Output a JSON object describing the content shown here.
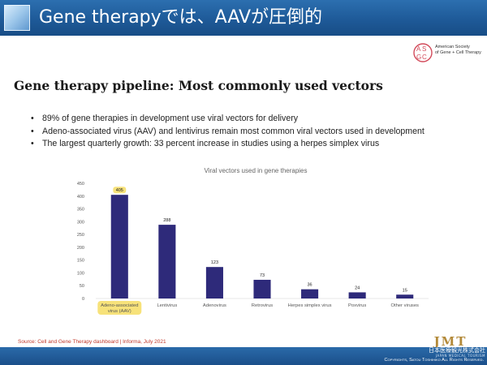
{
  "slide": {
    "title": "Gene therapyでは、AAVが圧倒的",
    "heading": "Gene therapy pipeline: Most commonly used vectors",
    "bullets": [
      "89% of gene therapies in development use viral vectors for delivery",
      "Adeno-associated virus (AAV) and lentivirus remain most common viral vectors used in development",
      "The largest quarterly growth: 33 percent increase in studies using a herpes simplex virus"
    ],
    "source": "Source: Cell and Gene Therapy dashboard | Informa, July 2021",
    "colors": {
      "header_blue": "#1e5a98",
      "bar_color": "#2e2a7a",
      "highlight": "#f7e27a",
      "source_red": "#c0392b",
      "logo_gold": "#b38a3a"
    }
  },
  "logo": {
    "name_line1": "American Society",
    "name_line2": "of Gene + Cell Therapy",
    "icon": "asgct-logo-icon"
  },
  "footer": {
    "brand": "JMT",
    "company": "日本医療観光株式会社",
    "company_en": "JAPAN MEDICAL TOURISM",
    "copyright": "Copyrights, Satou Toshihiko All Rights Reserved."
  },
  "chart_data": {
    "type": "bar",
    "title": "Viral vectors used in gene therapies",
    "categories": [
      "Adeno-associated virus (AAV)",
      "Lentivirus",
      "Adenovirus",
      "Retrovirus",
      "Herpes simplex virus",
      "Poxvirus",
      "Other viruses"
    ],
    "category_lines": [
      [
        "Adeno-associated",
        "virus (AAV)"
      ],
      [
        "Lentivirus"
      ],
      [
        "Adenovirus"
      ],
      [
        "Retrovirus"
      ],
      [
        "Herpes simplex virus"
      ],
      [
        "Poxvirus"
      ],
      [
        "Other viruses"
      ]
    ],
    "values": [
      405,
      288,
      123,
      73,
      36,
      24,
      15
    ],
    "highlighted_category": "Adeno-associated virus (AAV)",
    "yticks": [
      0,
      50,
      100,
      150,
      200,
      250,
      300,
      350,
      400,
      450
    ],
    "ylim": [
      0,
      450
    ],
    "grid": false,
    "legend": "none"
  }
}
